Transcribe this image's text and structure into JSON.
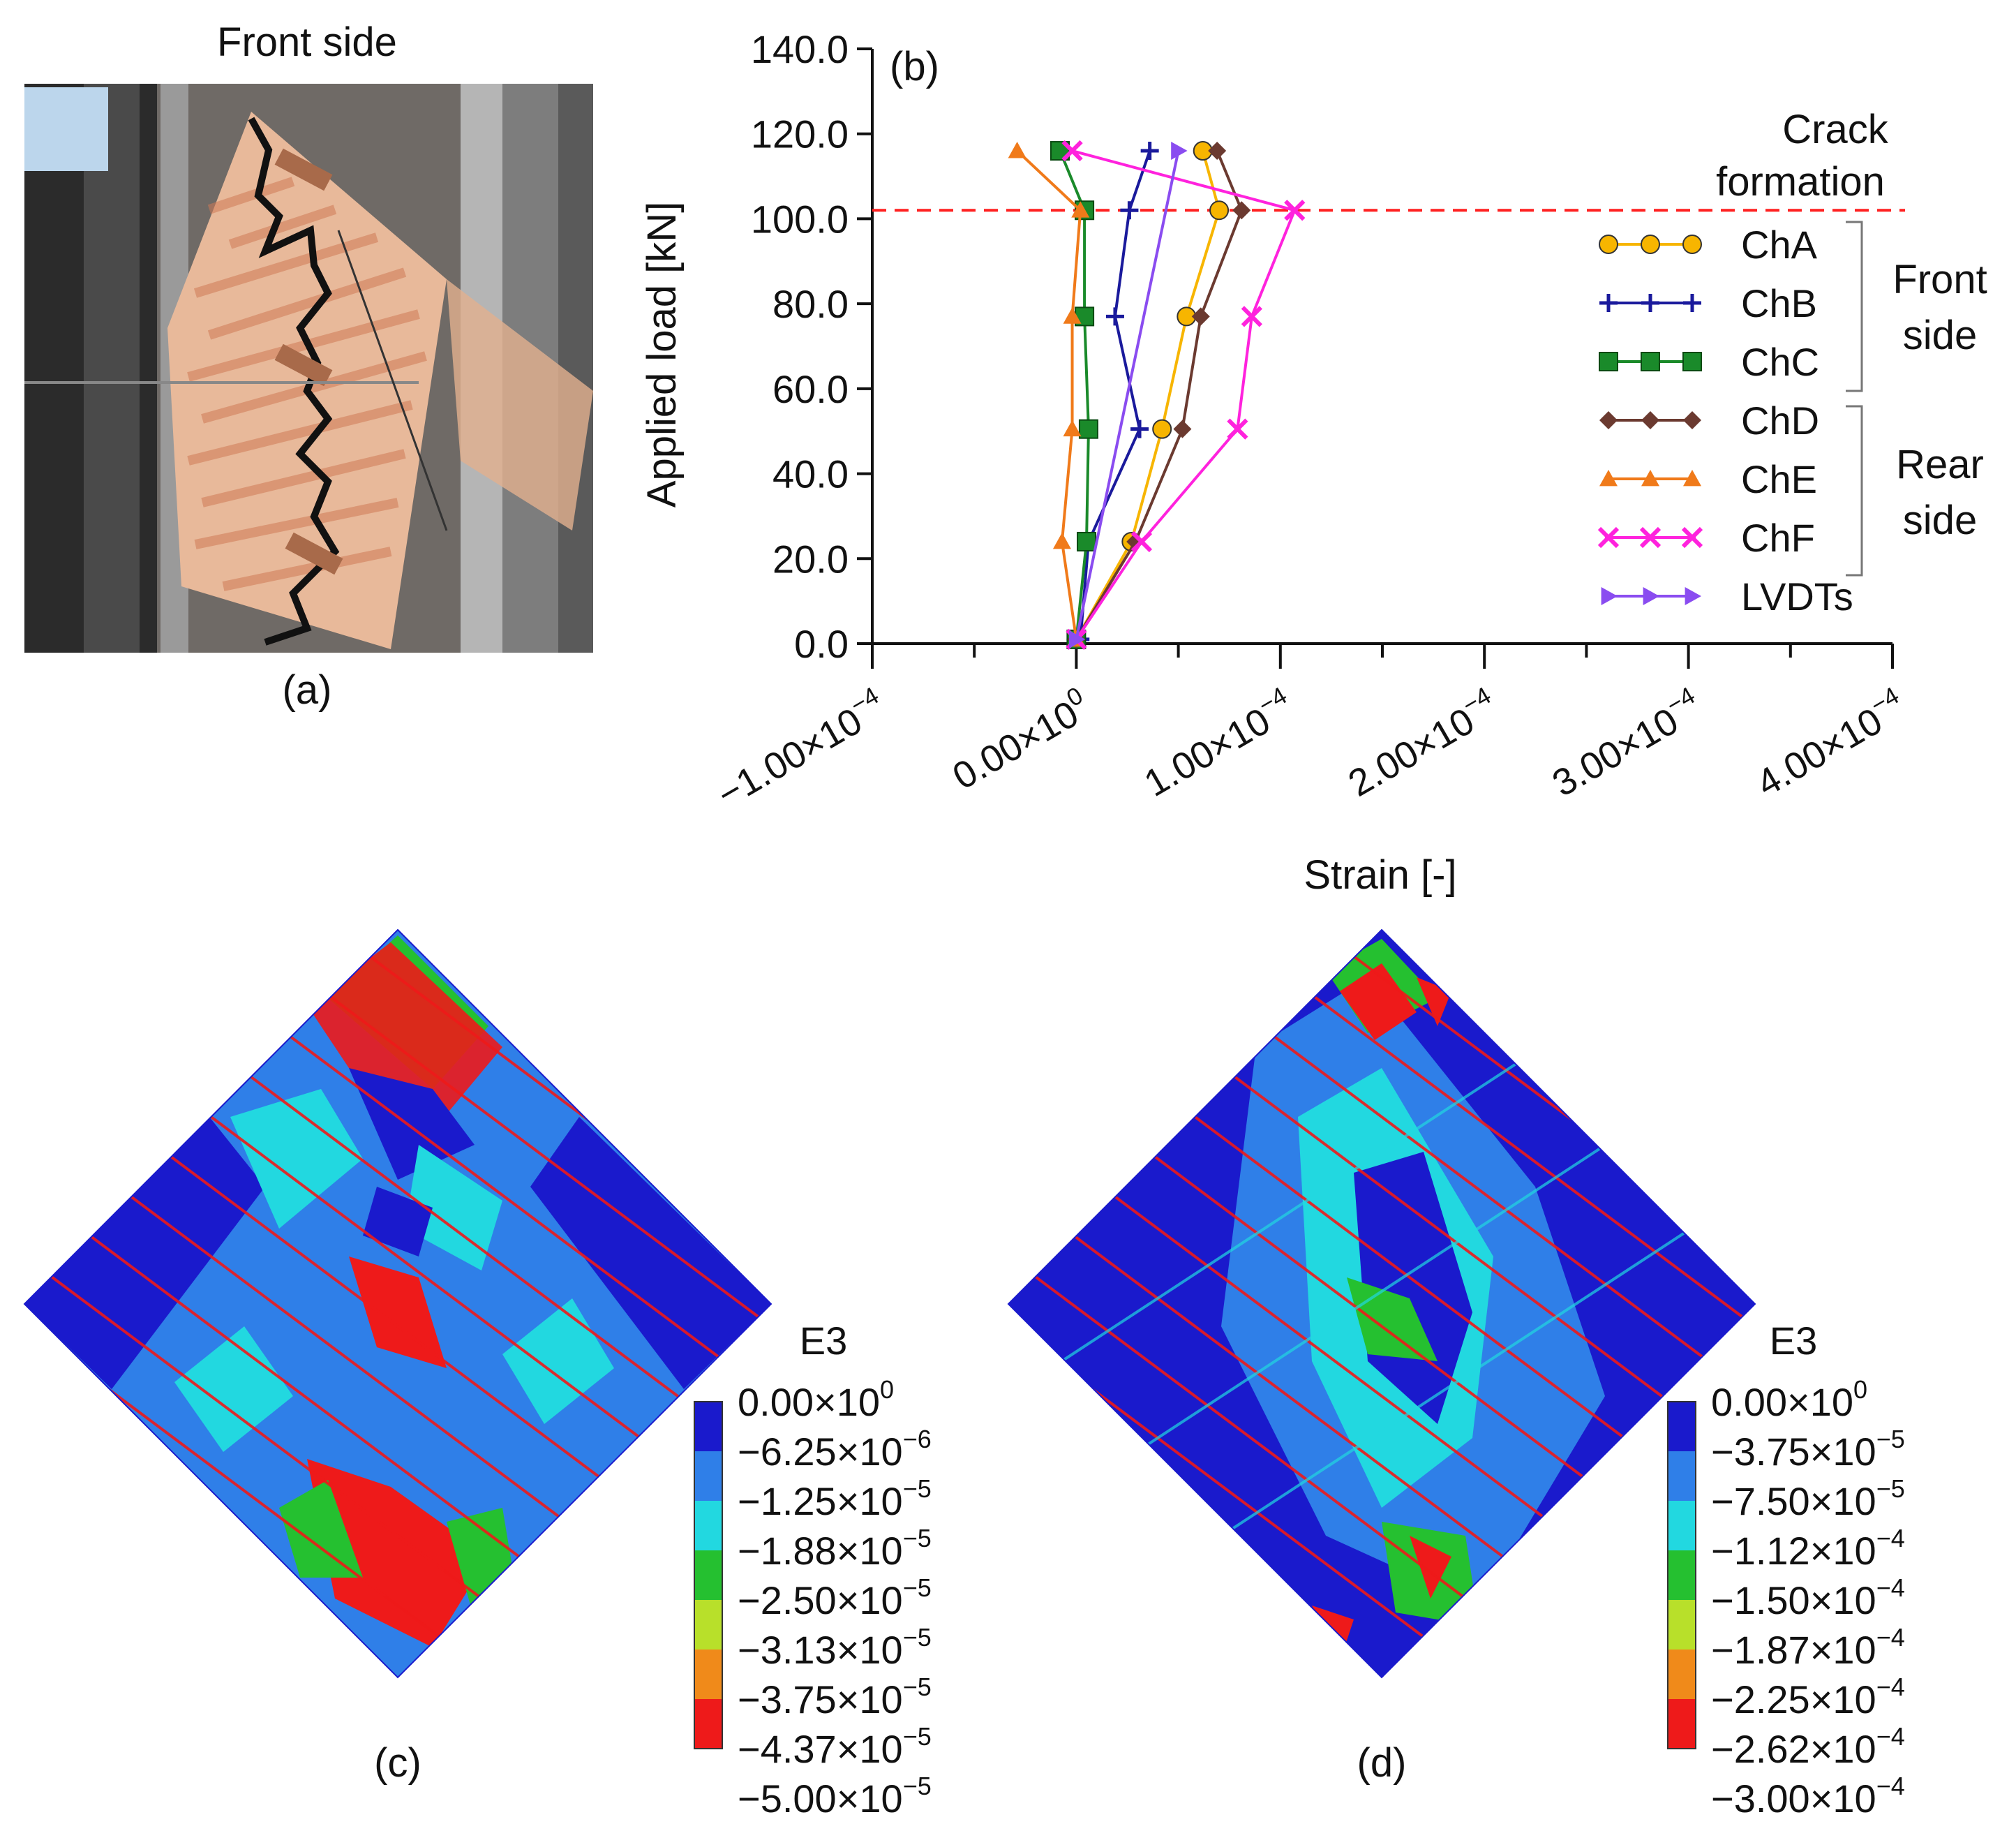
{
  "panels": {
    "a": {
      "title": "Front side",
      "caption": "(a)",
      "photo_description_icon": "masonry-wallet-photo-icon"
    },
    "c": {
      "caption": "(c)"
    },
    "d": {
      "caption": "(d)"
    }
  },
  "chart_data": {
    "type": "line",
    "panel_label": "(b)",
    "xlabel": "Strain [-]",
    "ylabel": "Applied load [kN]",
    "xlim": [
      -0.0001,
      0.0004
    ],
    "ylim": [
      0,
      140
    ],
    "x_ticks": [
      -0.0001,
      0,
      0.0001,
      0.0002,
      0.0003,
      0.0004
    ],
    "x_tick_labels": [
      {
        "mant": "−1.00×10",
        "exp": "−4"
      },
      {
        "mant": "0.00×10",
        "exp": "0"
      },
      {
        "mant": "1.00×10",
        "exp": "−4"
      },
      {
        "mant": "2.00×10",
        "exp": "−4"
      },
      {
        "mant": "3.00×10",
        "exp": "−4"
      },
      {
        "mant": "4.00×10",
        "exp": "−4"
      }
    ],
    "y_ticks": [
      0,
      20,
      40,
      60,
      80,
      100,
      120,
      140
    ],
    "y_tick_labels": [
      "0.0",
      "20.0",
      "40.0",
      "60.0",
      "80.0",
      "100.0",
      "120.0",
      "140.0"
    ],
    "reference_line": {
      "y": 102,
      "label_line1": "Crack",
      "label_line2": "formation",
      "color": "#ff2020"
    },
    "legend_groups": [
      {
        "label_line1": "Front",
        "label_line2": "side"
      },
      {
        "label_line1": "Rear",
        "label_line2": "side"
      }
    ],
    "series": [
      {
        "name": "ChA",
        "color": "#f7b500",
        "marker": "circle",
        "points": [
          [
            0.0,
            1
          ],
          [
            2.7e-05,
            24
          ],
          [
            4.2e-05,
            50.5
          ],
          [
            5.4e-05,
            77
          ],
          [
            7e-05,
            102
          ],
          [
            6.2e-05,
            116
          ]
        ]
      },
      {
        "name": "ChB",
        "color": "#1a1a9c",
        "marker": "plus",
        "points": [
          [
            2e-06,
            1
          ],
          [
            6e-06,
            24
          ],
          [
            3.1e-05,
            50.5
          ],
          [
            1.9e-05,
            77
          ],
          [
            2.6e-05,
            102
          ],
          [
            3.6e-05,
            116
          ]
        ]
      },
      {
        "name": "ChC",
        "color": "#1a8a2a",
        "marker": "square",
        "points": [
          [
            0.0,
            1
          ],
          [
            5e-06,
            24
          ],
          [
            6e-06,
            50.5
          ],
          [
            4e-06,
            77
          ],
          [
            4e-06,
            102
          ],
          [
            -8e-06,
            116
          ]
        ]
      },
      {
        "name": "ChD",
        "color": "#6b3a30",
        "marker": "diamond",
        "points": [
          [
            0.0,
            1
          ],
          [
            2.9e-05,
            24
          ],
          [
            5.2e-05,
            50.5
          ],
          [
            6.1e-05,
            77
          ],
          [
            8.1e-05,
            102
          ],
          [
            6.9e-05,
            116
          ]
        ]
      },
      {
        "name": "ChE",
        "color": "#f07a1a",
        "marker": "triangle",
        "points": [
          [
            0.0,
            1
          ],
          [
            -7e-06,
            24
          ],
          [
            -2e-06,
            50.5
          ],
          [
            -2e-06,
            77
          ],
          [
            2e-06,
            102
          ],
          [
            -2.9e-05,
            116
          ]
        ]
      },
      {
        "name": "ChF",
        "color": "#ff22dd",
        "marker": "x",
        "points": [
          [
            0.0,
            1
          ],
          [
            3.2e-05,
            24
          ],
          [
            7.9e-05,
            50.5
          ],
          [
            8.6e-05,
            77
          ],
          [
            0.000107,
            102
          ],
          [
            -2e-06,
            116
          ]
        ]
      },
      {
        "name": "LVDTs",
        "color": "#8a4cf0",
        "marker": "right-triangle",
        "points": [
          [
            0.0,
            1
          ],
          [
            5e-05,
            116
          ]
        ]
      }
    ]
  },
  "contour_legends": [
    {
      "title": "E3",
      "colors": [
        "#1a1acc",
        "#2f7fe8",
        "#22d8e0",
        "#25c030",
        "#b8e02a",
        "#f08a1a",
        "#ee1a1a"
      ],
      "labels": [
        {
          "mant": "0.00×10",
          "exp": "0"
        },
        {
          "mant": "−6.25×10",
          "exp": "−6"
        },
        {
          "mant": "−1.25×10",
          "exp": "−5"
        },
        {
          "mant": "−1.88×10",
          "exp": "−5"
        },
        {
          "mant": "−2.50×10",
          "exp": "−5"
        },
        {
          "mant": "−3.13×10",
          "exp": "−5"
        },
        {
          "mant": "−3.75×10",
          "exp": "−5"
        },
        {
          "mant": "−4.37×10",
          "exp": "−5"
        },
        {
          "mant": "−5.00×10",
          "exp": "−5"
        }
      ]
    },
    {
      "title": "E3",
      "colors": [
        "#1a1acc",
        "#2f7fe8",
        "#22d8e0",
        "#25c030",
        "#b8e02a",
        "#f08a1a",
        "#ee1a1a"
      ],
      "labels": [
        {
          "mant": "0.00×10",
          "exp": "0"
        },
        {
          "mant": "−3.75×10",
          "exp": "−5"
        },
        {
          "mant": "−7.50×10",
          "exp": "−5"
        },
        {
          "mant": "−1.12×10",
          "exp": "−4"
        },
        {
          "mant": "−1.50×10",
          "exp": "−4"
        },
        {
          "mant": "−1.87×10",
          "exp": "−4"
        },
        {
          "mant": "−2.25×10",
          "exp": "−4"
        },
        {
          "mant": "−2.62×10",
          "exp": "−4"
        },
        {
          "mant": "−3.00×10",
          "exp": "−4"
        }
      ]
    }
  ]
}
